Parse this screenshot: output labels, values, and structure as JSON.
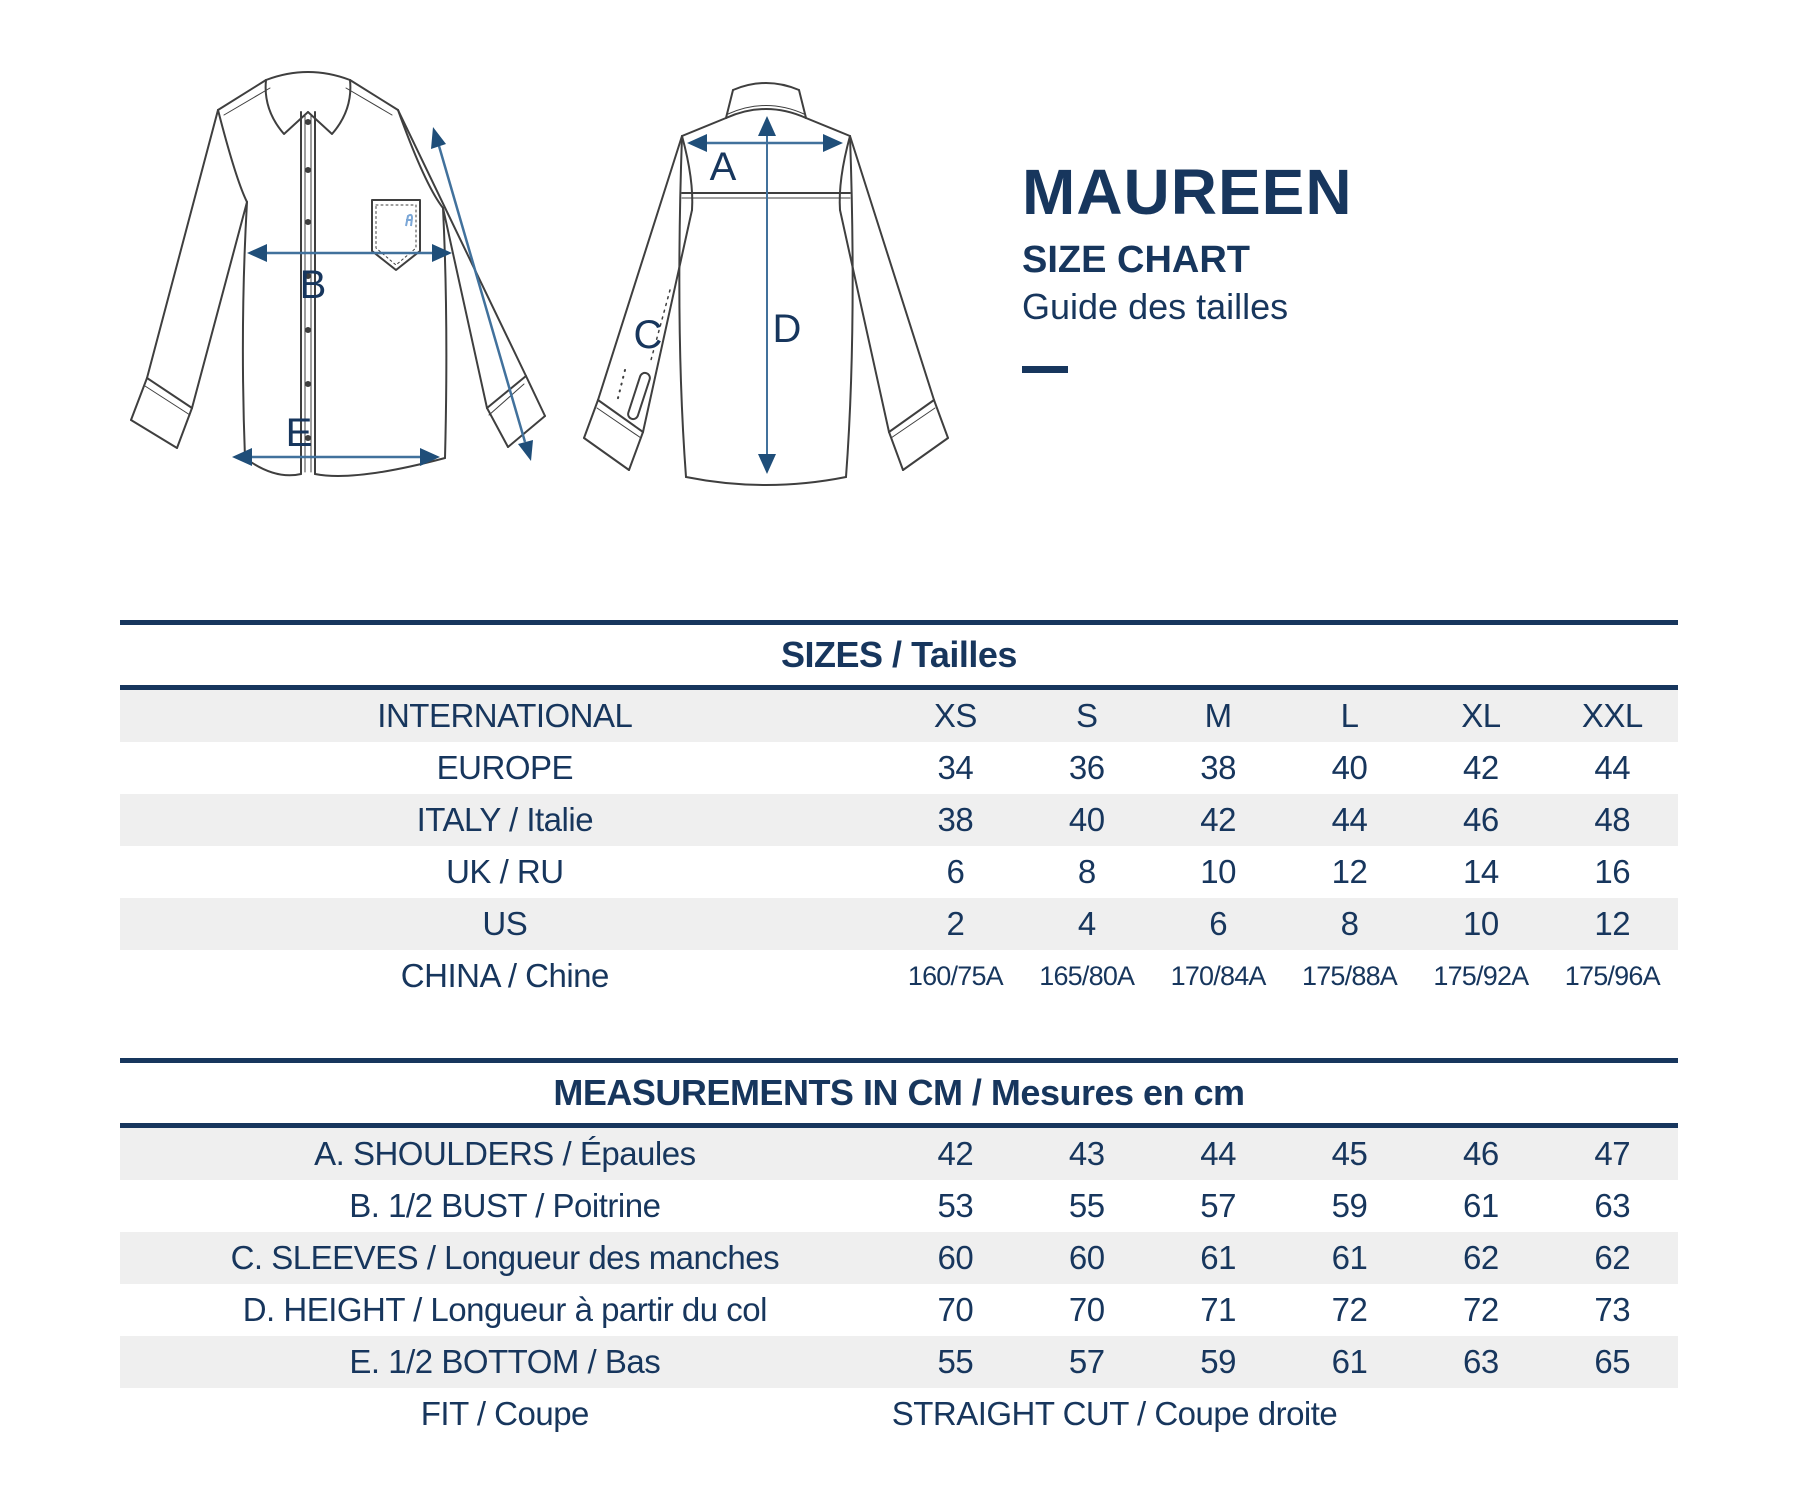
{
  "title": {
    "name": "MAUREEN",
    "subtitle": "SIZE CHART",
    "subtitle_fr": "Guide des tailles"
  },
  "diagram": {
    "labels": {
      "a": "A",
      "b": "B",
      "c": "C",
      "d": "D",
      "e": "E"
    }
  },
  "sizes_table": {
    "header": "SIZES / Tailles",
    "rows": [
      {
        "label": "INTERNATIONAL",
        "values": [
          "XS",
          "S",
          "M",
          "L",
          "XL",
          "XXL"
        ]
      },
      {
        "label": "EUROPE",
        "values": [
          "34",
          "36",
          "38",
          "40",
          "42",
          "44"
        ]
      },
      {
        "label": "ITALY / Italie",
        "values": [
          "38",
          "40",
          "42",
          "44",
          "46",
          "48"
        ]
      },
      {
        "label": "UK / RU",
        "values": [
          "6",
          "8",
          "10",
          "12",
          "14",
          "16"
        ]
      },
      {
        "label": "US",
        "values": [
          "2",
          "4",
          "6",
          "8",
          "10",
          "12"
        ]
      },
      {
        "label": "CHINA / Chine",
        "values": [
          "160/75A",
          "165/80A",
          "170/84A",
          "175/88A",
          "175/92A",
          "175/96A"
        ],
        "small": true
      }
    ]
  },
  "measurements_table": {
    "header": "MEASUREMENTS IN CM / Mesures en cm",
    "rows": [
      {
        "label": "A. SHOULDERS / Épaules",
        "values": [
          "42",
          "43",
          "44",
          "45",
          "46",
          "47"
        ]
      },
      {
        "label": "B. 1/2 BUST / Poitrine",
        "values": [
          "53",
          "55",
          "57",
          "59",
          "61",
          "63"
        ]
      },
      {
        "label": "C. SLEEVES / Longueur des manches",
        "values": [
          "60",
          "60",
          "61",
          "61",
          "62",
          "62"
        ]
      },
      {
        "label": "D. HEIGHT / Longueur à partir du col",
        "values": [
          "70",
          "70",
          "71",
          "72",
          "72",
          "73"
        ]
      },
      {
        "label": "E. 1/2 BOTTOM / Bas",
        "values": [
          "55",
          "57",
          "59",
          "61",
          "63",
          "65"
        ]
      },
      {
        "label": "FIT / Coupe",
        "span_value": "STRAIGHT CUT / Coupe droite"
      }
    ]
  },
  "colors": {
    "navy": "#17365d",
    "arrow_line": "#41719c",
    "arrow_head": "#1f4e79",
    "row_band": "#efefef",
    "outline": "#3f3f3f",
    "logo_blue": "#7ba7d7"
  }
}
